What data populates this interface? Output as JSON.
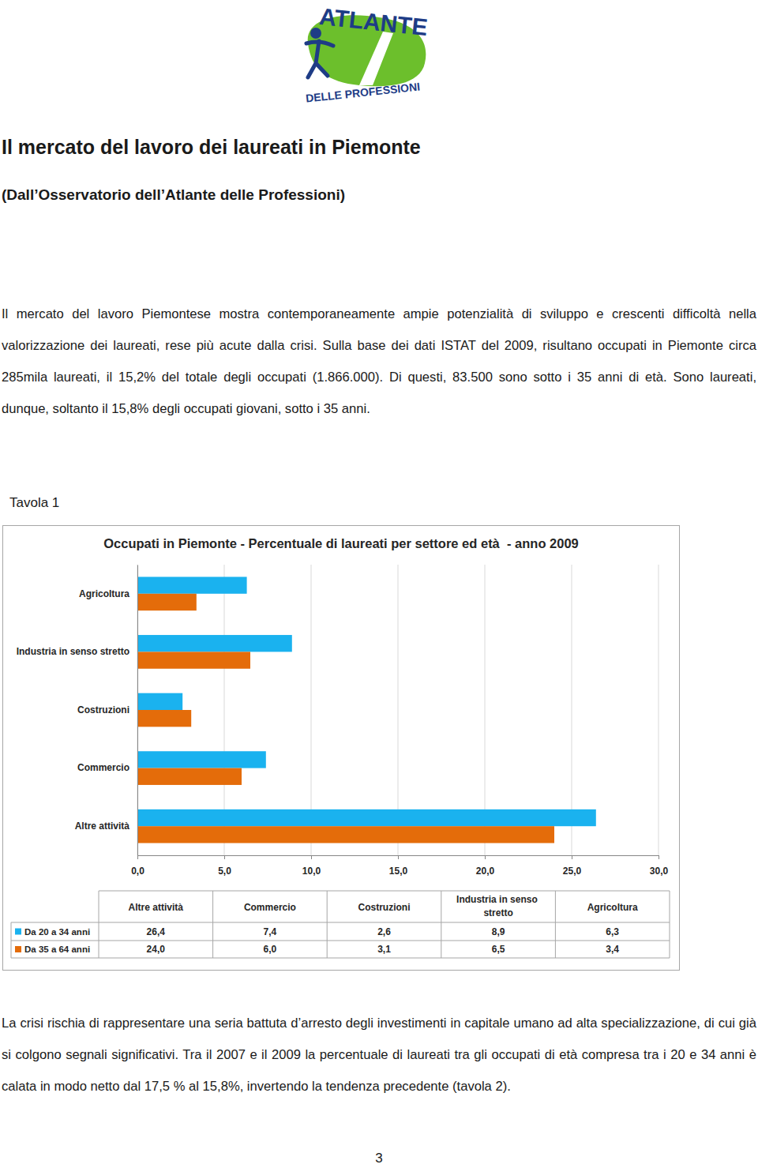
{
  "logo": {
    "top": "ATLANTE",
    "bottom": "DELLE PROFESSIONI"
  },
  "title": "Il mercato del lavoro dei laureati in Piemonte",
  "subtitle": "(Dall’Osservatorio dell’Atlante delle Professioni)",
  "paragraphs": [
    "Il mercato del lavoro Piemontese mostra contemporaneamente ampie potenzialità di sviluppo e crescenti difficoltà nella valorizzazione dei laureati, rese più acute dalla crisi. Sulla base dei dati ISTAT del 2009, risultano occupati in Piemonte circa 285mila laureati, il 15,2% del totale degli occupati (1.866.000). Di questi, 83.500 sono sotto i 35 anni di età. Sono laureati, dunque, soltanto il 15,8% degli occupati giovani, sotto i 35 anni.",
    "La crisi rischia di rappresentare una seria battuta d’arresto degli investimenti in capitale umano ad alta specializzazione, di cui già si colgono segnali significativi. Tra il 2007 e il 2009 la percentuale di laureati tra gli occupati di età compresa tra i 20 e 34 anni è calata in modo netto dal 17,5 % al 15,8%, invertendo la tendenza precedente (tavola 2)."
  ],
  "table_caption": "Tavola 1",
  "page_number": "3",
  "chart_data": {
    "type": "bar",
    "orientation": "horizontal",
    "title": "Occupati in Piemonte - Percentuale di laureati per settore ed età  - anno 2009",
    "categories": [
      "Altre attività",
      "Commercio",
      "Costruzioni",
      "Industria in senso stretto",
      "Agricoltura"
    ],
    "series": [
      {
        "name": "Da 20 a 34 anni",
        "color": "#1ab2ef",
        "values": [
          26.4,
          7.4,
          2.6,
          8.9,
          6.3
        ],
        "value_labels": [
          "26,4",
          "7,4",
          "2,6",
          "8,9",
          "6,3"
        ]
      },
      {
        "name": "Da 35 a 64 anni",
        "color": "#e46c0a",
        "values": [
          24.0,
          6.0,
          3.1,
          6.5,
          3.4
        ],
        "value_labels": [
          "24,0",
          "6,0",
          "3,1",
          "6,5",
          "3,4"
        ]
      }
    ],
    "xlim": [
      0,
      30
    ],
    "xticks": [
      {
        "value": 0,
        "label": "0,0"
      },
      {
        "value": 5,
        "label": "5,0"
      },
      {
        "value": 10,
        "label": "10,0"
      },
      {
        "value": 15,
        "label": "15,0"
      },
      {
        "value": 20,
        "label": "20,0"
      },
      {
        "value": 25,
        "label": "25,0"
      },
      {
        "value": 30,
        "label": "30,0"
      }
    ],
    "grid": true
  }
}
